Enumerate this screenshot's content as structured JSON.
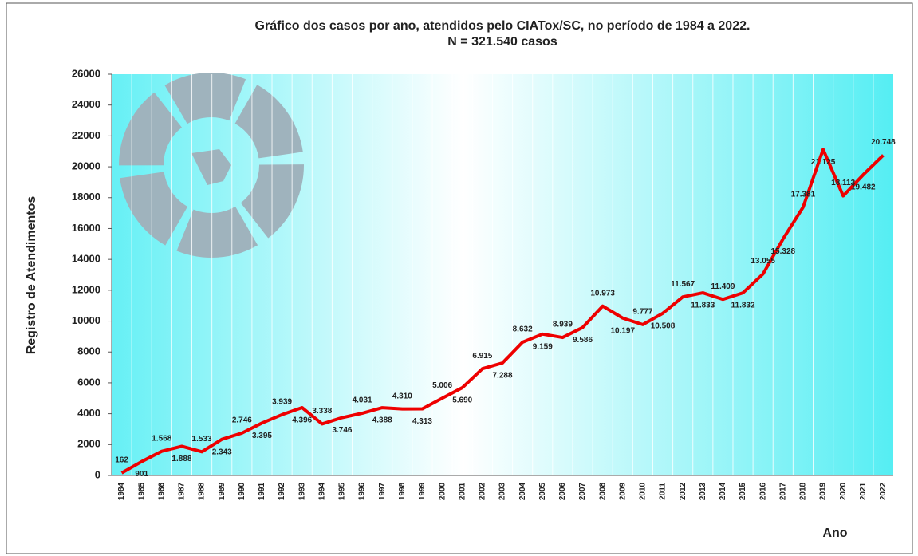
{
  "chart_data": {
    "type": "line",
    "title": "Gráfico dos casos por ano, atendidos pelo CIATox/SC,  no período de 1984 a 2022.",
    "subtitle": "N = 321.540 casos",
    "y_label": "Registro de Atendimentos",
    "x_label": "Ano",
    "categories": [
      "1984",
      "1985",
      "1986",
      "1987",
      "1988",
      "1989",
      "1990",
      "1991",
      "1992",
      "1993",
      "1994",
      "1995",
      "1996",
      "1997",
      "1998",
      "1999",
      "2000",
      "2001",
      "2002",
      "2003",
      "2004",
      "2005",
      "2006",
      "2007",
      "2008",
      "2009",
      "2010",
      "2011",
      "2012",
      "2013",
      "2014",
      "2015",
      "2016",
      "2017",
      "2018",
      "2019",
      "2020",
      "2021",
      "2022"
    ],
    "values": [
      162,
      901,
      1568,
      1888,
      1533,
      2343,
      2746,
      3395,
      3939,
      4396,
      3338,
      3746,
      4031,
      4388,
      4310,
      4313,
      5006,
      5690,
      6915,
      7288,
      8632,
      9159,
      8939,
      9586,
      10973,
      10197,
      9777,
      10508,
      11567,
      11833,
      11409,
      11832,
      13055,
      15328,
      17381,
      21125,
      18113,
      19482,
      20748
    ],
    "value_labels": [
      "162",
      "901",
      "1.568",
      "1.888",
      "1.533",
      "2.343",
      "2.746",
      "3.395",
      "3.939",
      "4.396",
      "3.338",
      "3.746",
      "4.031",
      "4.388",
      "4.310",
      "4.313",
      "5.006",
      "5.690",
      "6.915",
      "7.288",
      "8.632",
      "9.159",
      "8.939",
      "9.586",
      "10.973",
      "10.197",
      "9.777",
      "10.508",
      "11.567",
      "11.833",
      "11.409",
      "11.832",
      "13.055",
      "15.328",
      "17.381",
      "21.125",
      "18.113",
      "19.482",
      "20.748"
    ],
    "color": "#ee0000",
    "ylim": [
      0,
      26000
    ],
    "yticks": [
      0,
      2000,
      4000,
      6000,
      8000,
      10000,
      12000,
      14000,
      16000,
      18000,
      20000,
      22000,
      24000,
      26000
    ],
    "grid": true
  }
}
